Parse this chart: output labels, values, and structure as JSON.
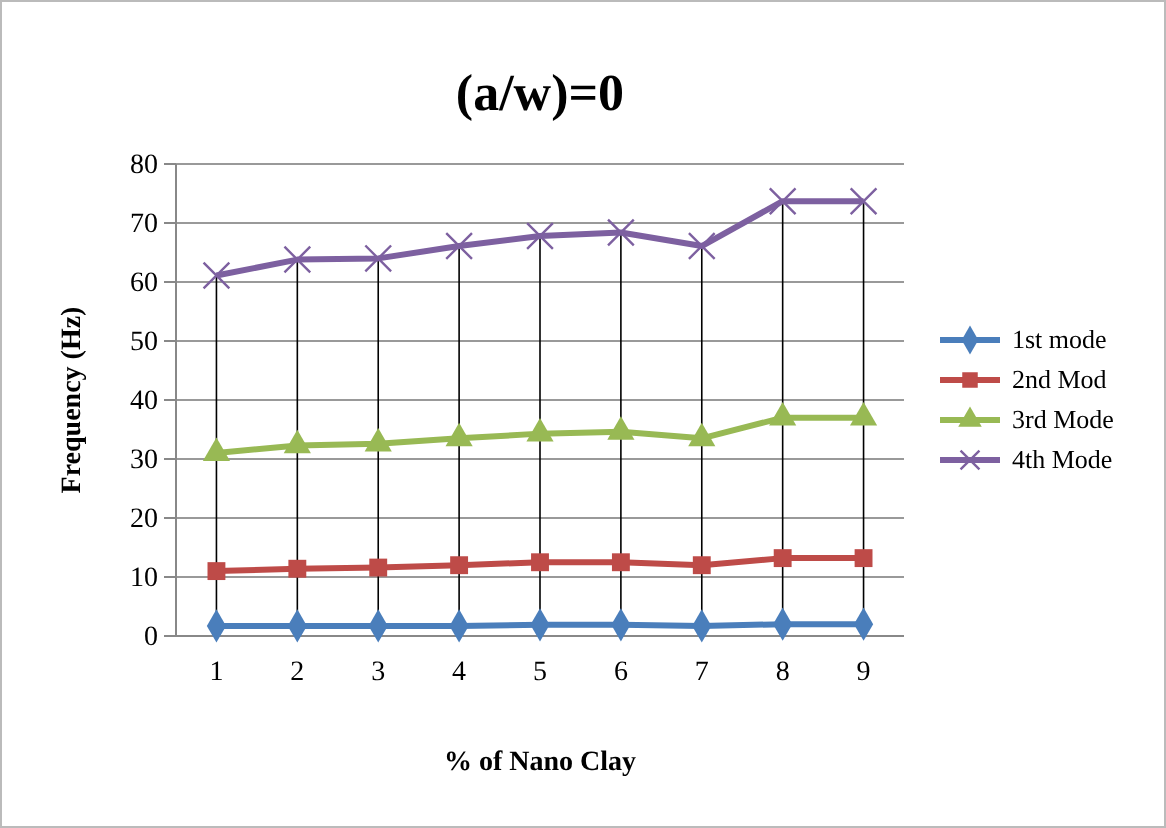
{
  "chart_data": {
    "type": "line",
    "title": "(a/w)=0",
    "xlabel": "% of Nano Clay",
    "ylabel": "Frequency (Hz)",
    "categories": [
      "1",
      "2",
      "3",
      "4",
      "5",
      "6",
      "7",
      "8",
      "9"
    ],
    "ylim": [
      0,
      80
    ],
    "yticks": [
      0,
      10,
      20,
      30,
      40,
      50,
      60,
      70,
      80
    ],
    "grid": true,
    "legend": "right",
    "series": [
      {
        "name": "1st mode",
        "color": "#4a7ebb",
        "marker": "diamond",
        "values": [
          1.7,
          1.7,
          1.7,
          1.7,
          1.9,
          1.9,
          1.7,
          2.0,
          2.0
        ]
      },
      {
        "name": "2nd Mod",
        "color": "#be4b48",
        "marker": "square",
        "values": [
          11,
          11.4,
          11.6,
          12,
          12.5,
          12.5,
          12,
          13.2,
          13.2
        ]
      },
      {
        "name": "3rd Mode",
        "color": "#98b954",
        "marker": "triangle",
        "values": [
          31,
          32.3,
          32.6,
          33.5,
          34.3,
          34.6,
          33.5,
          37,
          37
        ]
      },
      {
        "name": "4th Mode",
        "color": "#7d60a0",
        "marker": "cross",
        "values": [
          61.1,
          63.8,
          64,
          66.1,
          67.8,
          68.4,
          66.1,
          73.7,
          73.7
        ]
      }
    ]
  }
}
